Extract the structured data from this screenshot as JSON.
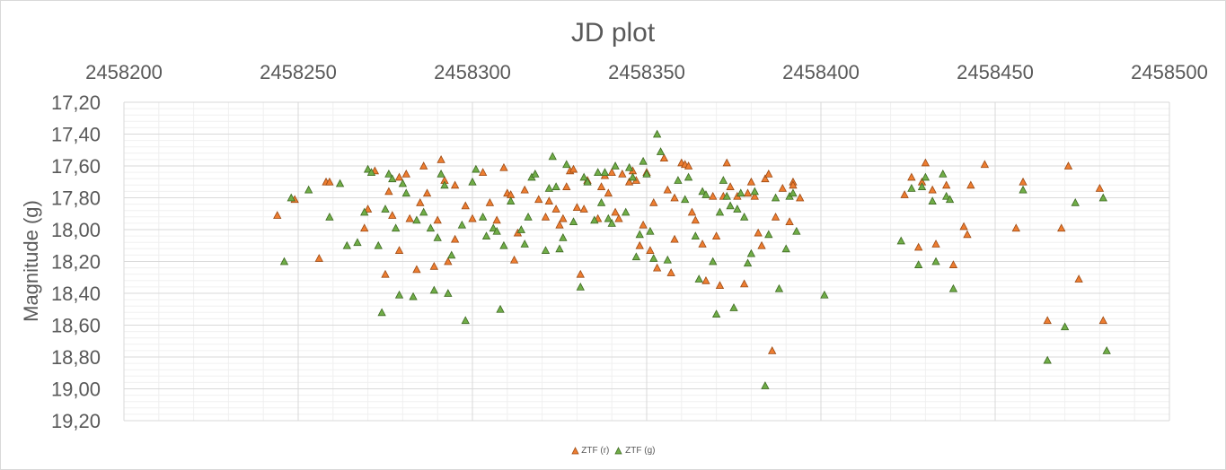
{
  "chart_data": {
    "type": "scatter",
    "title": "JD plot",
    "xlabel": "",
    "ylabel": "Magnitude (g)",
    "xlim": [
      2458200,
      2458500
    ],
    "ylim": [
      17.2,
      19.2
    ],
    "y_inverted": true,
    "x_axis_position": "top",
    "x_ticks": [
      "2458200",
      "2458250",
      "2458300",
      "2458350",
      "2458400",
      "2458450",
      "2458500"
    ],
    "y_ticks": [
      "17,20",
      "17,40",
      "17,60",
      "17,80",
      "18,00",
      "18,20",
      "18,40",
      "18,60",
      "18,80",
      "19,00",
      "19,20"
    ],
    "grid": true,
    "legend_position": "bottom",
    "series": [
      {
        "name": "ZTF (r)",
        "color": "#ED7D31",
        "marker": "triangle",
        "points": [
          [
            2458244,
            17.91
          ],
          [
            2458249,
            17.81
          ],
          [
            2458256,
            18.18
          ],
          [
            2458258,
            17.7
          ],
          [
            2458259,
            17.7
          ],
          [
            2458269,
            17.99
          ],
          [
            2458270,
            17.87
          ],
          [
            2458272,
            17.63
          ],
          [
            2458275,
            18.28
          ],
          [
            2458276,
            17.76
          ],
          [
            2458277,
            17.91
          ],
          [
            2458279,
            18.13
          ],
          [
            2458279,
            17.67
          ],
          [
            2458281,
            17.65
          ],
          [
            2458282,
            17.93
          ],
          [
            2458284,
            18.25
          ],
          [
            2458285,
            17.83
          ],
          [
            2458286,
            17.6
          ],
          [
            2458287,
            17.77
          ],
          [
            2458289,
            18.23
          ],
          [
            2458290,
            17.94
          ],
          [
            2458291,
            17.56
          ],
          [
            2458292,
            17.69
          ],
          [
            2458293,
            18.2
          ],
          [
            2458295,
            18.06
          ],
          [
            2458295,
            17.72
          ],
          [
            2458298,
            17.85
          ],
          [
            2458300,
            17.93
          ],
          [
            2458303,
            17.64
          ],
          [
            2458305,
            17.83
          ],
          [
            2458307,
            17.94
          ],
          [
            2458309,
            17.61
          ],
          [
            2458310,
            17.77
          ],
          [
            2458311,
            17.78
          ],
          [
            2458312,
            18.19
          ],
          [
            2458313,
            18.02
          ],
          [
            2458315,
            17.75
          ],
          [
            2458319,
            17.81
          ],
          [
            2458321,
            17.92
          ],
          [
            2458322,
            17.82
          ],
          [
            2458324,
            17.87
          ],
          [
            2458325,
            17.97
          ],
          [
            2458326,
            17.93
          ],
          [
            2458327,
            17.73
          ],
          [
            2458328,
            17.63
          ],
          [
            2458329,
            17.62
          ],
          [
            2458330,
            17.86
          ],
          [
            2458331,
            18.28
          ],
          [
            2458332,
            17.87
          ],
          [
            2458333,
            17.69
          ],
          [
            2458336,
            17.93
          ],
          [
            2458337,
            17.73
          ],
          [
            2458338,
            17.66
          ],
          [
            2458339,
            17.77
          ],
          [
            2458340,
            17.64
          ],
          [
            2458341,
            17.89
          ],
          [
            2458342,
            17.93
          ],
          [
            2458343,
            17.65
          ],
          [
            2458345,
            17.7
          ],
          [
            2458346,
            17.63
          ],
          [
            2458347,
            17.69
          ],
          [
            2458348,
            18.1
          ],
          [
            2458349,
            17.97
          ],
          [
            2458350,
            17.64
          ],
          [
            2458351,
            18.13
          ],
          [
            2458352,
            17.83
          ],
          [
            2458353,
            18.24
          ],
          [
            2458355,
            17.55
          ],
          [
            2458356,
            17.75
          ],
          [
            2458357,
            18.27
          ],
          [
            2458358,
            17.8
          ],
          [
            2458358,
            18.06
          ],
          [
            2458360,
            17.58
          ],
          [
            2458361,
            17.59
          ],
          [
            2458362,
            17.6
          ],
          [
            2458363,
            17.89
          ],
          [
            2458364,
            17.94
          ],
          [
            2458366,
            18.09
          ],
          [
            2458367,
            18.32
          ],
          [
            2458369,
            17.79
          ],
          [
            2458370,
            18.04
          ],
          [
            2458371,
            18.35
          ],
          [
            2458372,
            17.79
          ],
          [
            2458373,
            17.58
          ],
          [
            2458374,
            17.73
          ],
          [
            2458376,
            17.79
          ],
          [
            2458378,
            18.34
          ],
          [
            2458379,
            17.77
          ],
          [
            2458380,
            17.7
          ],
          [
            2458381,
            17.79
          ],
          [
            2458382,
            18.02
          ],
          [
            2458383,
            18.1
          ],
          [
            2458384,
            17.68
          ],
          [
            2458385,
            17.65
          ],
          [
            2458386,
            18.76
          ],
          [
            2458387,
            17.92
          ],
          [
            2458389,
            17.74
          ],
          [
            2458391,
            17.95
          ],
          [
            2458392,
            17.7
          ],
          [
            2458392,
            17.72
          ],
          [
            2458394,
            17.8
          ],
          [
            2458424,
            17.78
          ],
          [
            2458426,
            17.67
          ],
          [
            2458428,
            18.11
          ],
          [
            2458429,
            17.7
          ],
          [
            2458430,
            17.58
          ],
          [
            2458432,
            17.75
          ],
          [
            2458433,
            18.09
          ],
          [
            2458436,
            17.72
          ],
          [
            2458438,
            18.22
          ],
          [
            2458441,
            17.98
          ],
          [
            2458442,
            18.03
          ],
          [
            2458443,
            17.72
          ],
          [
            2458447,
            17.59
          ],
          [
            2458456,
            17.99
          ],
          [
            2458458,
            17.7
          ],
          [
            2458465,
            18.57
          ],
          [
            2458469,
            17.99
          ],
          [
            2458471,
            17.6
          ],
          [
            2458474,
            18.31
          ],
          [
            2458480,
            17.74
          ],
          [
            2458481,
            18.57
          ]
        ]
      },
      {
        "name": "ZTF (g)",
        "color": "#70AD47",
        "marker": "triangle",
        "points": [
          [
            2458246,
            18.2
          ],
          [
            2458248,
            17.8
          ],
          [
            2458253,
            17.75
          ],
          [
            2458259,
            17.92
          ],
          [
            2458262,
            17.71
          ],
          [
            2458264,
            18.1
          ],
          [
            2458267,
            18.08
          ],
          [
            2458269,
            17.89
          ],
          [
            2458270,
            17.62
          ],
          [
            2458271,
            17.64
          ],
          [
            2458273,
            18.1
          ],
          [
            2458274,
            18.52
          ],
          [
            2458275,
            17.87
          ],
          [
            2458276,
            17.65
          ],
          [
            2458277,
            17.68
          ],
          [
            2458278,
            17.99
          ],
          [
            2458279,
            18.41
          ],
          [
            2458280,
            17.71
          ],
          [
            2458281,
            17.77
          ],
          [
            2458283,
            18.42
          ],
          [
            2458284,
            17.94
          ],
          [
            2458286,
            17.89
          ],
          [
            2458288,
            17.99
          ],
          [
            2458289,
            18.38
          ],
          [
            2458290,
            18.05
          ],
          [
            2458291,
            17.65
          ],
          [
            2458292,
            17.72
          ],
          [
            2458293,
            18.4
          ],
          [
            2458294,
            18.16
          ],
          [
            2458297,
            17.97
          ],
          [
            2458298,
            18.57
          ],
          [
            2458300,
            17.7
          ],
          [
            2458301,
            17.62
          ],
          [
            2458303,
            17.92
          ],
          [
            2458304,
            18.04
          ],
          [
            2458306,
            17.99
          ],
          [
            2458307,
            18.01
          ],
          [
            2458308,
            18.5
          ],
          [
            2458309,
            18.1
          ],
          [
            2458311,
            17.82
          ],
          [
            2458314,
            18.0
          ],
          [
            2458315,
            18.09
          ],
          [
            2458316,
            17.92
          ],
          [
            2458317,
            17.67
          ],
          [
            2458318,
            17.65
          ],
          [
            2458321,
            18.13
          ],
          [
            2458322,
            17.74
          ],
          [
            2458323,
            17.54
          ],
          [
            2458324,
            17.73
          ],
          [
            2458325,
            18.12
          ],
          [
            2458326,
            18.05
          ],
          [
            2458327,
            17.59
          ],
          [
            2458329,
            17.95
          ],
          [
            2458331,
            18.36
          ],
          [
            2458332,
            17.67
          ],
          [
            2458333,
            17.7
          ],
          [
            2458335,
            17.94
          ],
          [
            2458336,
            17.64
          ],
          [
            2458337,
            17.83
          ],
          [
            2458338,
            17.64
          ],
          [
            2458339,
            17.93
          ],
          [
            2458340,
            17.96
          ],
          [
            2458341,
            17.6
          ],
          [
            2458344,
            17.89
          ],
          [
            2458345,
            17.61
          ],
          [
            2458346,
            17.67
          ],
          [
            2458347,
            18.17
          ],
          [
            2458348,
            18.03
          ],
          [
            2458349,
            17.57
          ],
          [
            2458350,
            17.65
          ],
          [
            2458351,
            18.01
          ],
          [
            2458352,
            18.18
          ],
          [
            2458353,
            17.4
          ],
          [
            2458354,
            17.51
          ],
          [
            2458356,
            18.19
          ],
          [
            2458359,
            17.69
          ],
          [
            2458361,
            17.81
          ],
          [
            2458362,
            17.67
          ],
          [
            2458364,
            18.04
          ],
          [
            2458365,
            18.31
          ],
          [
            2458366,
            17.76
          ],
          [
            2458367,
            17.78
          ],
          [
            2458369,
            18.2
          ],
          [
            2458370,
            18.53
          ],
          [
            2458371,
            17.89
          ],
          [
            2458372,
            17.69
          ],
          [
            2458373,
            17.79
          ],
          [
            2458374,
            17.85
          ],
          [
            2458375,
            18.49
          ],
          [
            2458376,
            17.87
          ],
          [
            2458377,
            17.77
          ],
          [
            2458378,
            17.92
          ],
          [
            2458379,
            18.21
          ],
          [
            2458380,
            18.15
          ],
          [
            2458381,
            17.76
          ],
          [
            2458384,
            18.98
          ],
          [
            2458385,
            18.03
          ],
          [
            2458387,
            17.8
          ],
          [
            2458388,
            18.37
          ],
          [
            2458390,
            18.12
          ],
          [
            2458391,
            17.79
          ],
          [
            2458392,
            17.77
          ],
          [
            2458393,
            18.01
          ],
          [
            2458401,
            18.41
          ],
          [
            2458423,
            18.07
          ],
          [
            2458426,
            17.74
          ],
          [
            2458428,
            18.22
          ],
          [
            2458429,
            17.73
          ],
          [
            2458430,
            17.67
          ],
          [
            2458432,
            17.82
          ],
          [
            2458433,
            18.2
          ],
          [
            2458435,
            17.65
          ],
          [
            2458436,
            17.79
          ],
          [
            2458437,
            17.81
          ],
          [
            2458438,
            18.37
          ],
          [
            2458458,
            17.75
          ],
          [
            2458465,
            18.82
          ],
          [
            2458470,
            18.61
          ],
          [
            2458473,
            17.83
          ],
          [
            2458481,
            17.8
          ],
          [
            2458482,
            18.76
          ]
        ]
      }
    ]
  }
}
